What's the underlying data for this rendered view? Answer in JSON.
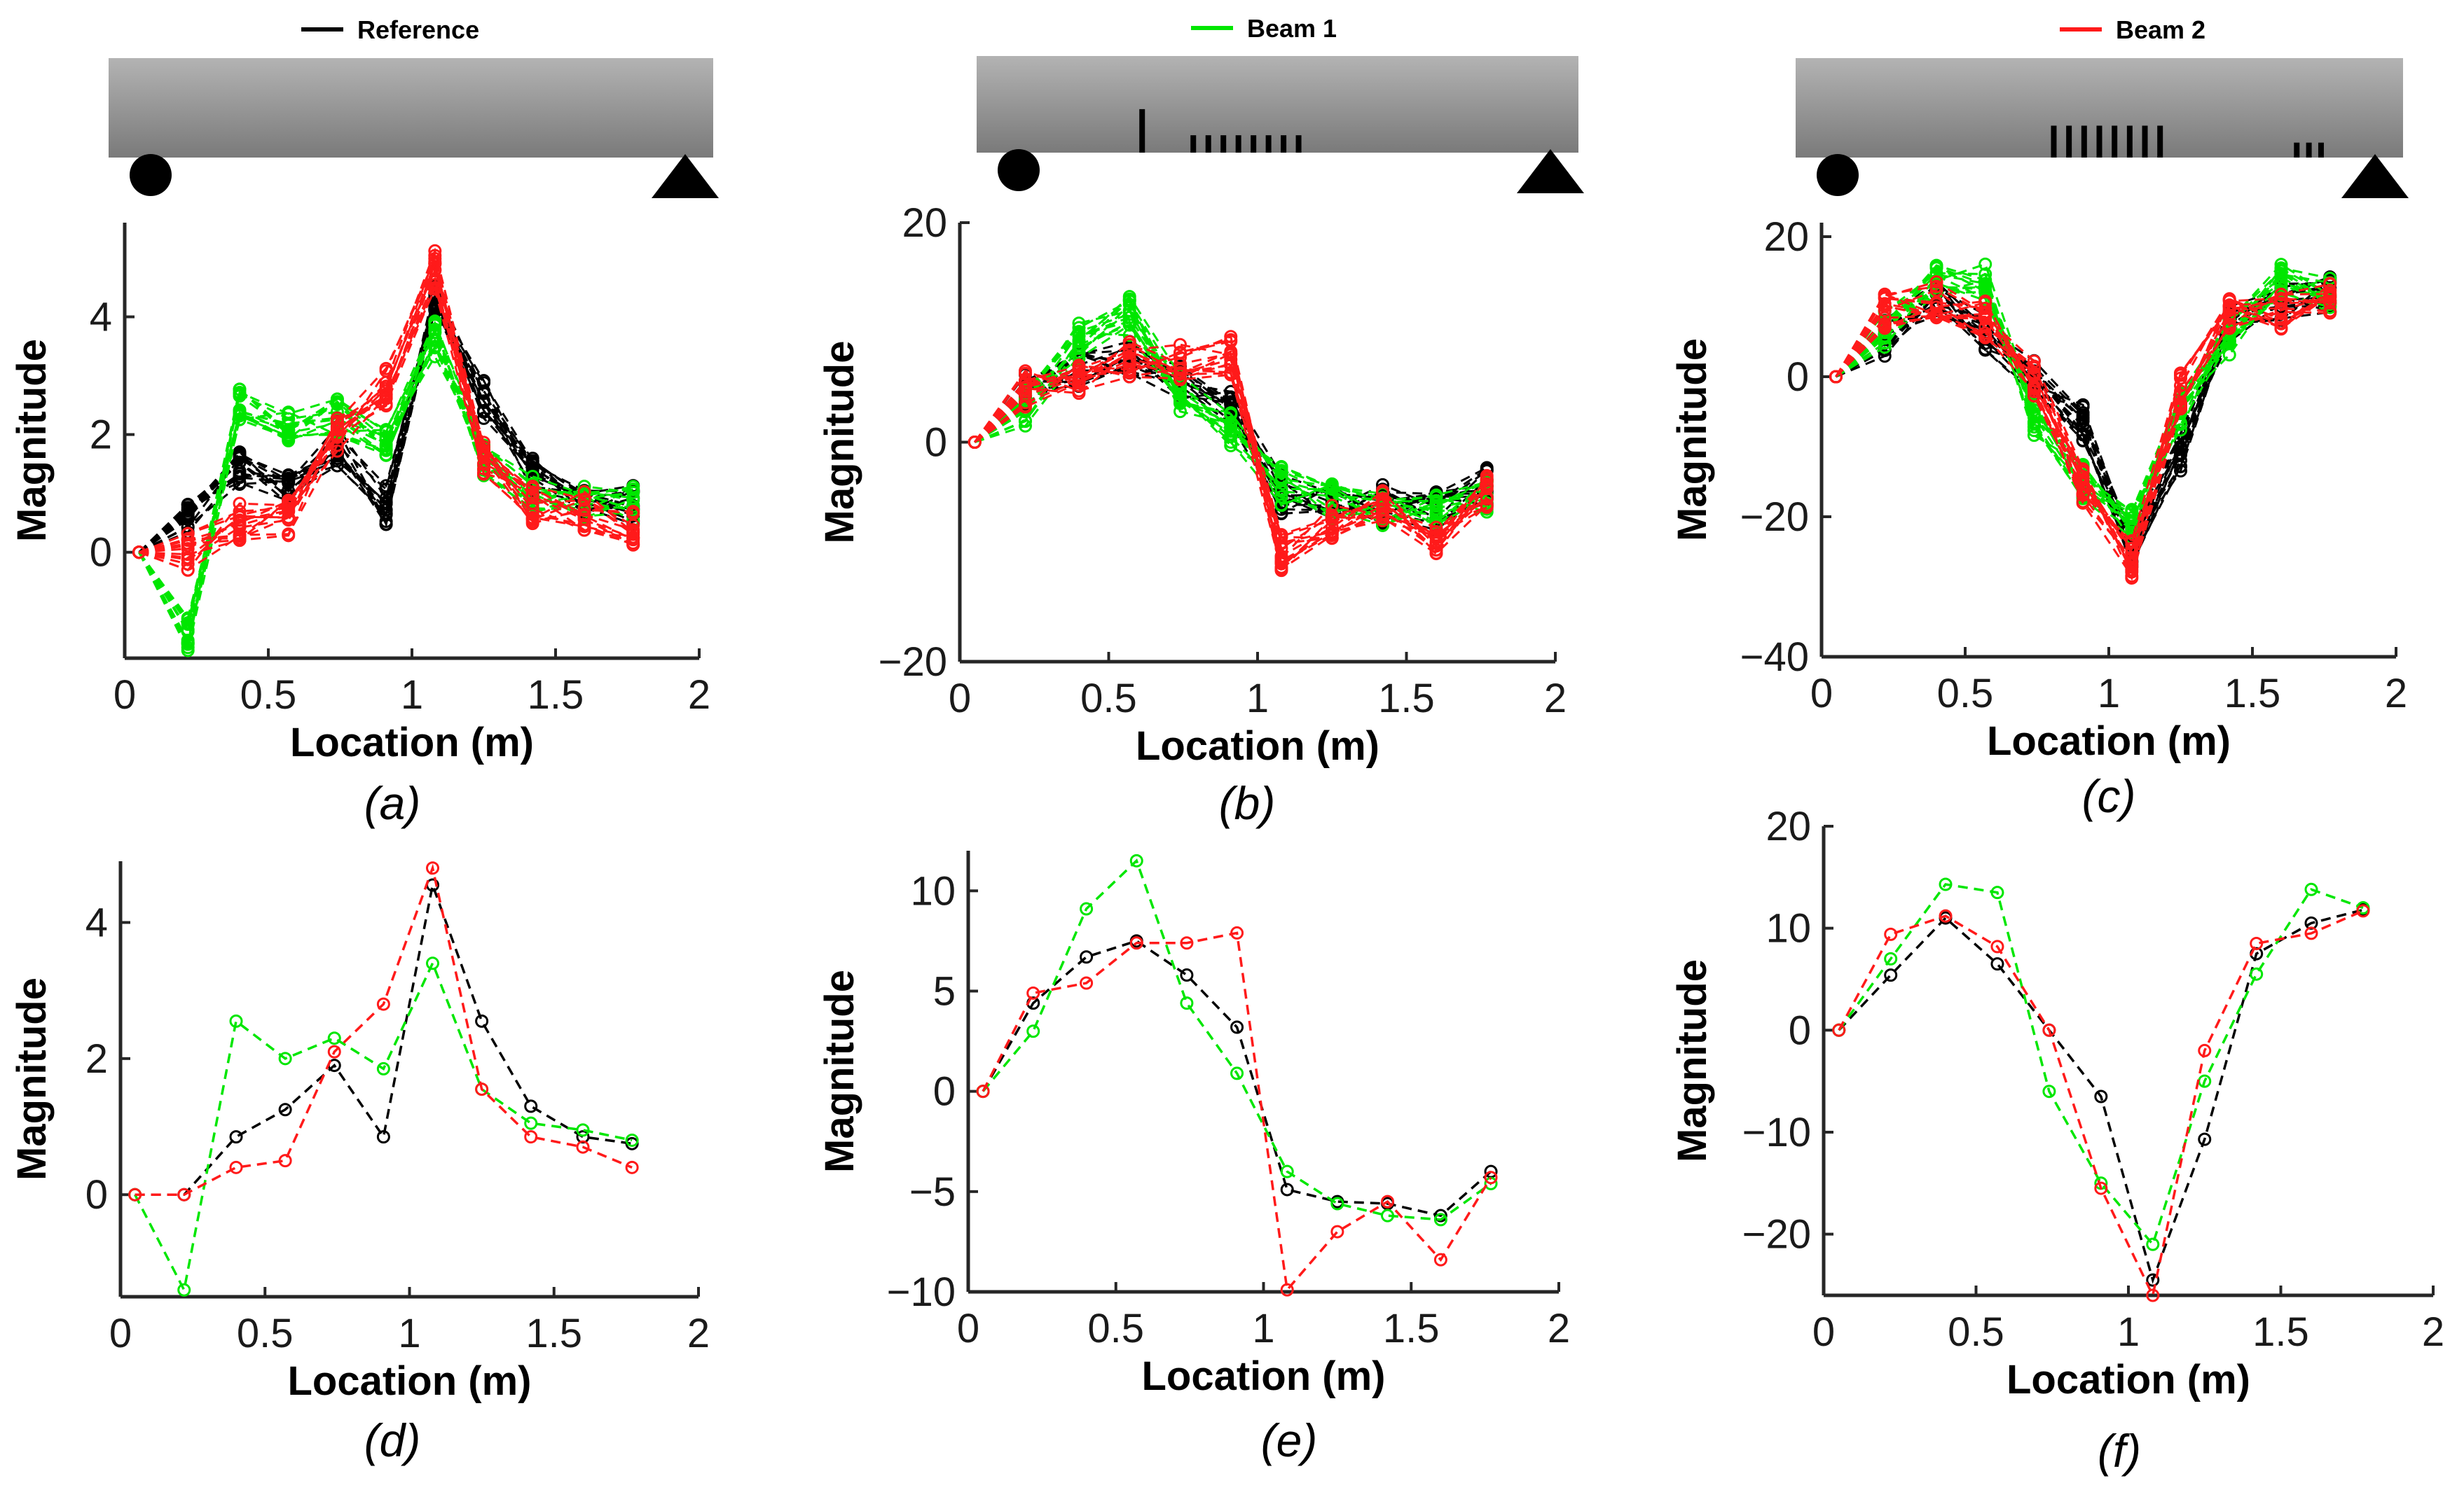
{
  "legend": {
    "reference": {
      "label": "Reference",
      "color": "#000000"
    },
    "beam1": {
      "label": "Beam 1",
      "color": "#00e600"
    },
    "beam2": {
      "label": "Beam 2",
      "color": "#ff1a1a"
    }
  },
  "chart_data": [
    {
      "id": "a",
      "caption": "(a)",
      "type": "line",
      "title": "Reference",
      "xlabel": "Location (m)",
      "ylabel": "Magnitude",
      "xlim": [
        0,
        2
      ],
      "ylim": [
        -1.8,
        5.6
      ],
      "xticks": [
        0,
        0.5,
        1,
        1.5,
        2
      ],
      "xtick_labels": [
        "0",
        "0.5",
        "1",
        "1.5",
        "2"
      ],
      "yticks": [
        0,
        2,
        4
      ],
      "ytick_labels": [
        "0",
        "2",
        "4"
      ],
      "x": [
        0.05,
        0.22,
        0.4,
        0.57,
        0.74,
        0.91,
        1.08,
        1.25,
        1.42,
        1.6,
        1.77
      ],
      "series": [
        {
          "name": "Reference",
          "color": "#000000",
          "values": [
            0,
            0.6,
            1.4,
            1.1,
            1.8,
            0.8,
            4.3,
            2.6,
            1.3,
            0.8,
            0.8
          ]
        },
        {
          "name": "Beam 1",
          "color": "#00e600",
          "values": [
            0,
            -1.4,
            2.5,
            2.2,
            2.3,
            1.9,
            3.6,
            1.5,
            1.0,
            0.9,
            0.8
          ]
        },
        {
          "name": "Beam 2",
          "color": "#ff1a1a",
          "values": [
            0,
            0,
            0.5,
            0.6,
            2.0,
            2.8,
            4.8,
            1.6,
            0.8,
            0.7,
            0.4
          ]
        }
      ],
      "beam": {
        "cracks": []
      }
    },
    {
      "id": "b",
      "caption": "(b)",
      "type": "line",
      "title": "Beam 1",
      "xlabel": "Location (m)",
      "ylabel": "Magnitude",
      "xlim": [
        0,
        2
      ],
      "ylim": [
        -20,
        20
      ],
      "xticks": [
        0,
        0.5,
        1,
        1.5,
        2
      ],
      "xtick_labels": [
        "0",
        "0.5",
        "1",
        "1.5",
        "2"
      ],
      "yticks": [
        -20,
        0,
        20
      ],
      "ytick_labels": [
        "−20",
        "0",
        "20"
      ],
      "x": [
        0.05,
        0.22,
        0.4,
        0.57,
        0.74,
        0.91,
        1.08,
        1.25,
        1.42,
        1.6,
        1.77
      ],
      "series": [
        {
          "name": "Reference",
          "color": "#000000",
          "values": [
            0,
            4.5,
            6.8,
            7.5,
            5.7,
            3.2,
            -4.8,
            -5.6,
            -5.6,
            -6.2,
            -4.0
          ]
        },
        {
          "name": "Beam 1",
          "color": "#00e600",
          "values": [
            0,
            3.0,
            9.2,
            11.5,
            4.4,
            1.0,
            -4.0,
            -5.5,
            -6.2,
            -6.4,
            -4.6
          ]
        },
        {
          "name": "Beam 2",
          "color": "#ff1a1a",
          "values": [
            0,
            5.0,
            5.5,
            7.5,
            7.5,
            7.9,
            -10.0,
            -7.0,
            -5.5,
            -8.4,
            -4.3
          ]
        }
      ],
      "beam": {
        "cracks": [
          {
            "x": 0.55,
            "depth": 0.45
          },
          {
            "x": 0.72,
            "depth": 0.18
          },
          {
            "x": 0.77,
            "depth": 0.18
          },
          {
            "x": 0.82,
            "depth": 0.18
          },
          {
            "x": 0.87,
            "depth": 0.18
          },
          {
            "x": 0.92,
            "depth": 0.18
          },
          {
            "x": 0.97,
            "depth": 0.18
          },
          {
            "x": 1.02,
            "depth": 0.18
          },
          {
            "x": 1.07,
            "depth": 0.18
          }
        ]
      }
    },
    {
      "id": "c",
      "caption": "(c)",
      "type": "line",
      "title": "Beam 2",
      "xlabel": "Location (m)",
      "ylabel": "Magnitude",
      "xlim": [
        0,
        2
      ],
      "ylim": [
        -40,
        22
      ],
      "xticks": [
        0,
        0.5,
        1,
        1.5,
        2
      ],
      "xtick_labels": [
        "0",
        "0.5",
        "1",
        "1.5",
        "2"
      ],
      "yticks": [
        -40,
        -20,
        0,
        20
      ],
      "ytick_labels": [
        "−40",
        "−20",
        "0",
        "20"
      ],
      "x": [
        0.05,
        0.22,
        0.4,
        0.57,
        0.74,
        0.91,
        1.08,
        1.25,
        1.42,
        1.6,
        1.77
      ],
      "series": [
        {
          "name": "Reference",
          "color": "#000000",
          "values": [
            0,
            5.4,
            11.0,
            6.5,
            0,
            -6.5,
            -24.5,
            -10.7,
            7.5,
            10.5,
            11.8
          ]
        },
        {
          "name": "Beam 1",
          "color": "#00e600",
          "values": [
            0,
            7.0,
            14.3,
            13.5,
            -6.0,
            -15.0,
            -21.0,
            -5.0,
            5.5,
            13.8,
            12.0
          ]
        },
        {
          "name": "Beam 2",
          "color": "#ff1a1a",
          "values": [
            0,
            9.4,
            11.2,
            8.2,
            0,
            -15.5,
            -26.0,
            -2.0,
            8.5,
            9.5,
            11.7
          ]
        }
      ],
      "beam": {
        "cracks": [
          {
            "x": 0.85,
            "depth": 0.32
          },
          {
            "x": 0.9,
            "depth": 0.32
          },
          {
            "x": 0.95,
            "depth": 0.32
          },
          {
            "x": 1.0,
            "depth": 0.32
          },
          {
            "x": 1.05,
            "depth": 0.32
          },
          {
            "x": 1.1,
            "depth": 0.32
          },
          {
            "x": 1.15,
            "depth": 0.32
          },
          {
            "x": 1.2,
            "depth": 0.32
          },
          {
            "x": 1.65,
            "depth": 0.15
          },
          {
            "x": 1.69,
            "depth": 0.15
          },
          {
            "x": 1.73,
            "depth": 0.15
          }
        ]
      }
    },
    {
      "id": "d",
      "caption": "(d)",
      "type": "line",
      "xlabel": "Location (m)",
      "ylabel": "Magnitude",
      "xlim": [
        0,
        2
      ],
      "ylim": [
        -1.5,
        4.9
      ],
      "xticks": [
        0,
        0.5,
        1,
        1.5,
        2
      ],
      "xtick_labels": [
        "0",
        "0.5",
        "1",
        "1.5",
        "2"
      ],
      "yticks": [
        0,
        2,
        4
      ],
      "ytick_labels": [
        "0",
        "2",
        "4"
      ],
      "x": [
        0.05,
        0.22,
        0.4,
        0.57,
        0.74,
        0.91,
        1.08,
        1.25,
        1.42,
        1.6,
        1.77
      ],
      "series": [
        {
          "name": "Reference",
          "color": "#000000",
          "values": [
            0,
            0,
            0.85,
            1.25,
            1.9,
            0.85,
            4.55,
            2.55,
            1.3,
            0.85,
            0.75
          ]
        },
        {
          "name": "Beam 1",
          "color": "#00e600",
          "values": [
            0,
            -1.4,
            2.55,
            2.0,
            2.3,
            1.85,
            3.4,
            1.55,
            1.05,
            0.95,
            0.8
          ]
        },
        {
          "name": "Beam 2",
          "color": "#ff1a1a",
          "values": [
            0,
            0,
            0.4,
            0.5,
            2.1,
            2.8,
            4.8,
            1.55,
            0.85,
            0.7,
            0.4
          ]
        }
      ]
    },
    {
      "id": "e",
      "caption": "(e)",
      "type": "line",
      "xlabel": "Location (m)",
      "ylabel": "Magnitude",
      "xlim": [
        0,
        2
      ],
      "ylim": [
        -10,
        12
      ],
      "xticks": [
        0,
        0.5,
        1,
        1.5,
        2
      ],
      "xtick_labels": [
        "0",
        "0.5",
        "1",
        "1.5",
        "2"
      ],
      "yticks": [
        -10,
        -5,
        0,
        5,
        10
      ],
      "ytick_labels": [
        "−10",
        "−5",
        "0",
        "5",
        "10"
      ],
      "x": [
        0.05,
        0.22,
        0.4,
        0.57,
        0.74,
        0.91,
        1.08,
        1.25,
        1.42,
        1.6,
        1.77
      ],
      "series": [
        {
          "name": "Reference",
          "color": "#000000",
          "values": [
            0,
            4.4,
            6.7,
            7.5,
            5.8,
            3.2,
            -4.9,
            -5.5,
            -5.6,
            -6.2,
            -4.0
          ]
        },
        {
          "name": "Beam 1",
          "color": "#00e600",
          "values": [
            0,
            3.0,
            9.1,
            11.5,
            4.4,
            0.9,
            -4.0,
            -5.6,
            -6.2,
            -6.4,
            -4.6
          ]
        },
        {
          "name": "Beam 2",
          "color": "#ff1a1a",
          "values": [
            0,
            4.9,
            5.4,
            7.4,
            7.4,
            7.9,
            -9.9,
            -7.0,
            -5.5,
            -8.4,
            -4.3
          ]
        }
      ]
    },
    {
      "id": "f",
      "caption": "(f)",
      "type": "line",
      "xlabel": "Location (m)",
      "ylabel": "Magnitude",
      "xlim": [
        0,
        2
      ],
      "ylim": [
        -26,
        20
      ],
      "xticks": [
        0,
        0.5,
        1,
        1.5,
        2
      ],
      "xtick_labels": [
        "0",
        "0.5",
        "1",
        "1.5",
        "2"
      ],
      "yticks": [
        -20,
        -10,
        0,
        10,
        20
      ],
      "ytick_labels": [
        "−20",
        "−10",
        "0",
        "10",
        "20"
      ],
      "x": [
        0.05,
        0.22,
        0.4,
        0.57,
        0.74,
        0.91,
        1.08,
        1.25,
        1.42,
        1.6,
        1.77
      ],
      "series": [
        {
          "name": "Reference",
          "color": "#000000",
          "values": [
            0,
            5.4,
            11.0,
            6.5,
            0,
            -6.5,
            -24.5,
            -10.7,
            7.5,
            10.5,
            11.8
          ]
        },
        {
          "name": "Beam 1",
          "color": "#00e600",
          "values": [
            0,
            7.0,
            14.3,
            13.5,
            -6.0,
            -15.0,
            -21.0,
            -5.0,
            5.5,
            13.8,
            12.0
          ]
        },
        {
          "name": "Beam 2",
          "color": "#ff1a1a",
          "values": [
            0,
            9.4,
            11.2,
            8.2,
            0,
            -15.5,
            -26.0,
            -2.0,
            8.5,
            9.5,
            11.7
          ]
        }
      ]
    }
  ]
}
